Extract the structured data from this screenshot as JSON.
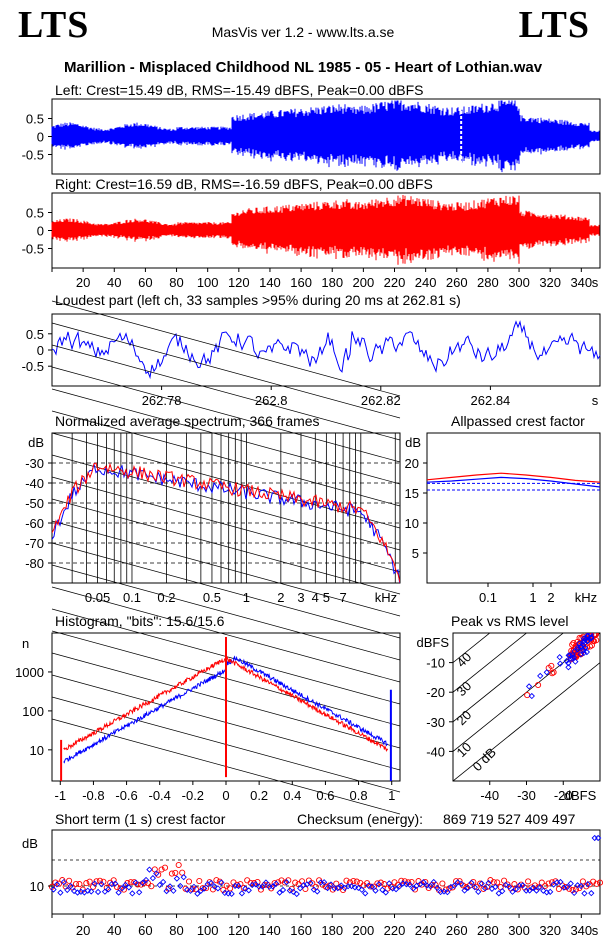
{
  "header": {
    "logo_left": "LTS",
    "logo_right": "LTS",
    "version": "MasVis ver 1.2 - www.lts.a.se",
    "title": "Marillion - Misplaced Childhood NL 1985 - 05 - Heart of Lothian.wav"
  },
  "colors": {
    "left": "#0000ff",
    "right": "#ff0000"
  },
  "chart_data": [
    {
      "type": "area",
      "title": "Left: Crest=15.49 dB, RMS=-15.49 dBFS, Peak=0.00 dBFS",
      "ylim": [
        -1,
        1
      ],
      "yticks": [
        "0.5",
        "0",
        "-0.5"
      ],
      "color": "#0000ff",
      "duration_s": 352
    },
    {
      "type": "area",
      "title": "Right: Crest=16.59 dB, RMS=-16.59 dBFS, Peak=0.00 dBFS",
      "ylim": [
        -1,
        1
      ],
      "yticks": [
        "0.5",
        "0",
        "-0.5"
      ],
      "color": "#ff0000",
      "xticks": [
        "20",
        "40",
        "60",
        "80",
        "100",
        "120",
        "140",
        "160",
        "180",
        "200",
        "220",
        "240",
        "260",
        "280",
        "300",
        "320",
        "340"
      ],
      "xunit": "s"
    },
    {
      "type": "line",
      "title": "Loudest part (left  ch, 33 samples >95% during 20 ms at 262.81 s)",
      "ylim": [
        -1,
        1
      ],
      "yticks": [
        "0.5",
        "0",
        "-0.5"
      ],
      "xlim": [
        262.76,
        262.86
      ],
      "xticks": [
        "262.78",
        "262.8",
        "262.82",
        "262.84"
      ],
      "xunit": "s"
    },
    {
      "type": "line",
      "title": "Normalized average spectrum, 366 frames",
      "ylabel": "dB",
      "yticks": [
        "-30",
        "-40",
        "-50",
        "-60",
        "-70",
        "-80"
      ],
      "xticks": [
        "0.05",
        "0.1",
        "0.2",
        "0.5",
        "1",
        "2",
        "3",
        "4",
        "5",
        "7"
      ],
      "xunit": "kHz",
      "xlim_khz": [
        0.02,
        22
      ],
      "ylim": [
        -90,
        -15
      ]
    },
    {
      "type": "line",
      "title": "Allpassed crest factor",
      "ylabel": "dB",
      "yticks": [
        "20",
        "15",
        "10",
        "5"
      ],
      "ylim": [
        0,
        25
      ],
      "xticks": [
        "0.1",
        "1",
        "2"
      ],
      "xunit": "kHz",
      "series": [
        {
          "values": [
            17.2,
            17.6,
            18.0,
            18.3,
            18.0,
            17.6,
            17.1,
            16.8
          ]
        },
        {
          "values": [
            16.8,
            17.0,
            17.3,
            17.6,
            17.4,
            17.0,
            16.5,
            16.0
          ]
        }
      ],
      "dashed_levels": [
        15.5,
        16.6
      ]
    },
    {
      "type": "line",
      "title": "Histogram, \"bits\": 15.6/15.6",
      "ylabel": "n",
      "yticks": [
        "1000",
        "100",
        "10"
      ],
      "xticks": [
        "-1",
        "-0.8",
        "-0.6",
        "-0.4",
        "-0.2",
        "0",
        "0.2",
        "0.4",
        "0.6",
        "0.8",
        "1"
      ],
      "xlim": [
        -1.05,
        1.05
      ]
    },
    {
      "type": "scatter",
      "title": "Peak vs RMS level",
      "ylabel": "dBFS",
      "xunit": "dBFS",
      "yticks": [
        "-10",
        "-20",
        "-30",
        "-40"
      ],
      "xticks": [
        "-40",
        "-30",
        "-20"
      ],
      "diag_labels": [
        "40",
        "30",
        "20",
        "10",
        "0 dB"
      ]
    },
    {
      "type": "scatter",
      "title": "Short term (1 s) crest factor",
      "checksum_label": "Checksum (energy):",
      "checksum_value": "869 719 527 409 497",
      "ylabel": "dB",
      "yticks": [
        "10"
      ],
      "xticks": [
        "20",
        "40",
        "60",
        "80",
        "100",
        "120",
        "140",
        "160",
        "180",
        "200",
        "220",
        "240",
        "260",
        "280",
        "300",
        "320",
        "340"
      ],
      "xunit": "s"
    }
  ]
}
